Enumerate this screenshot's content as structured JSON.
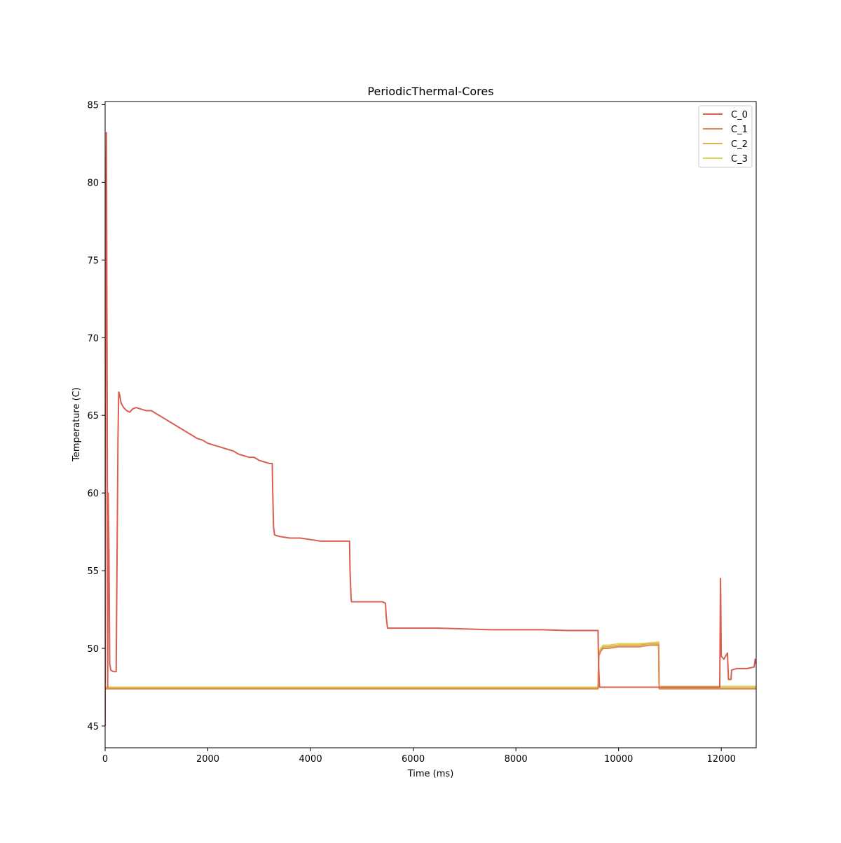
{
  "chart_data": {
    "type": "line",
    "title": "PeriodicThermal-Cores",
    "xlabel": "Time (ms)",
    "ylabel": "Temperature (C)",
    "xlim": [
      0,
      12680
    ],
    "ylim": [
      43.6,
      85.2
    ],
    "xticks": [
      0,
      2000,
      4000,
      6000,
      8000,
      10000,
      12000
    ],
    "yticks": [
      45,
      50,
      55,
      60,
      65,
      70,
      75,
      80,
      85
    ],
    "grid": false,
    "legend": "top-right",
    "series": [
      {
        "name": "C_0",
        "color": "#d95f52",
        "points": [
          [
            0,
            45.0
          ],
          [
            10,
            73.0
          ],
          [
            25,
            83.2
          ],
          [
            40,
            66.0
          ],
          [
            50,
            47.5
          ],
          [
            60,
            60.0
          ],
          [
            75,
            56.0
          ],
          [
            90,
            49.0
          ],
          [
            110,
            48.6
          ],
          [
            160,
            48.5
          ],
          [
            215,
            48.5
          ],
          [
            235,
            57.0
          ],
          [
            250,
            63.5
          ],
          [
            265,
            66.5
          ],
          [
            285,
            66.3
          ],
          [
            310,
            65.8
          ],
          [
            360,
            65.5
          ],
          [
            420,
            65.3
          ],
          [
            480,
            65.2
          ],
          [
            530,
            65.4
          ],
          [
            600,
            65.5
          ],
          [
            700,
            65.4
          ],
          [
            800,
            65.3
          ],
          [
            900,
            65.3
          ],
          [
            1000,
            65.1
          ],
          [
            1100,
            64.9
          ],
          [
            1200,
            64.7
          ],
          [
            1300,
            64.5
          ],
          [
            1400,
            64.3
          ],
          [
            1500,
            64.1
          ],
          [
            1600,
            63.9
          ],
          [
            1700,
            63.7
          ],
          [
            1800,
            63.5
          ],
          [
            1900,
            63.4
          ],
          [
            2000,
            63.2
          ],
          [
            2100,
            63.1
          ],
          [
            2200,
            63.0
          ],
          [
            2300,
            62.9
          ],
          [
            2400,
            62.8
          ],
          [
            2500,
            62.7
          ],
          [
            2600,
            62.5
          ],
          [
            2700,
            62.4
          ],
          [
            2800,
            62.3
          ],
          [
            2900,
            62.3
          ],
          [
            3000,
            62.1
          ],
          [
            3100,
            62.0
          ],
          [
            3200,
            61.9
          ],
          [
            3255,
            61.9
          ],
          [
            3265,
            60.0
          ],
          [
            3280,
            57.8
          ],
          [
            3300,
            57.3
          ],
          [
            3400,
            57.2
          ],
          [
            3600,
            57.1
          ],
          [
            3800,
            57.1
          ],
          [
            4000,
            57.0
          ],
          [
            4200,
            56.9
          ],
          [
            4400,
            56.9
          ],
          [
            4600,
            56.9
          ],
          [
            4760,
            56.9
          ],
          [
            4770,
            55.0
          ],
          [
            4790,
            53.2
          ],
          [
            4800,
            53.0
          ],
          [
            5000,
            53.0
          ],
          [
            5200,
            53.0
          ],
          [
            5400,
            53.0
          ],
          [
            5460,
            52.9
          ],
          [
            5475,
            52.0
          ],
          [
            5500,
            51.3
          ],
          [
            5600,
            51.3
          ],
          [
            6000,
            51.3
          ],
          [
            6500,
            51.3
          ],
          [
            7000,
            51.25
          ],
          [
            7500,
            51.2
          ],
          [
            8000,
            51.2
          ],
          [
            8500,
            51.2
          ],
          [
            9000,
            51.15
          ],
          [
            9400,
            51.15
          ],
          [
            9600,
            51.15
          ],
          [
            9610,
            49.0
          ],
          [
            9630,
            47.5
          ],
          [
            10000,
            47.5
          ],
          [
            10780,
            47.5
          ],
          [
            10800,
            47.5
          ],
          [
            11000,
            47.5
          ],
          [
            11500,
            47.5
          ],
          [
            11970,
            47.5
          ],
          [
            11985,
            54.5
          ],
          [
            12000,
            49.5
          ],
          [
            12050,
            49.3
          ],
          [
            12120,
            49.7
          ],
          [
            12140,
            48.0
          ],
          [
            12190,
            48.0
          ],
          [
            12200,
            48.6
          ],
          [
            12300,
            48.7
          ],
          [
            12500,
            48.7
          ],
          [
            12640,
            48.8
          ],
          [
            12660,
            49.3
          ],
          [
            12680,
            49.0
          ]
        ]
      },
      {
        "name": "C_1",
        "color": "#dc8a52",
        "points": [
          [
            0,
            47.4
          ],
          [
            9600,
            47.4
          ],
          [
            9615,
            49.5
          ],
          [
            9650,
            49.8
          ],
          [
            9700,
            50.0
          ],
          [
            9800,
            50.0
          ],
          [
            10000,
            50.1
          ],
          [
            10200,
            50.1
          ],
          [
            10400,
            50.1
          ],
          [
            10600,
            50.2
          ],
          [
            10780,
            50.2
          ],
          [
            10790,
            47.4
          ],
          [
            12680,
            47.4
          ]
        ]
      },
      {
        "name": "C_2",
        "color": "#e1b04e",
        "points": [
          [
            0,
            47.45
          ],
          [
            9600,
            47.45
          ],
          [
            9615,
            49.6
          ],
          [
            9650,
            49.9
          ],
          [
            9700,
            50.1
          ],
          [
            9800,
            50.1
          ],
          [
            10000,
            50.2
          ],
          [
            10200,
            50.2
          ],
          [
            10400,
            50.2
          ],
          [
            10600,
            50.3
          ],
          [
            10780,
            50.3
          ],
          [
            10790,
            47.45
          ],
          [
            12680,
            47.45
          ]
        ]
      },
      {
        "name": "C_3",
        "color": "#d8d454",
        "points": [
          [
            0,
            47.5
          ],
          [
            9600,
            47.5
          ],
          [
            9615,
            49.7
          ],
          [
            9650,
            50.0
          ],
          [
            9700,
            50.2
          ],
          [
            9800,
            50.2
          ],
          [
            10000,
            50.3
          ],
          [
            10200,
            50.3
          ],
          [
            10400,
            50.3
          ],
          [
            10600,
            50.35
          ],
          [
            10780,
            50.4
          ],
          [
            10790,
            47.55
          ],
          [
            12680,
            47.55
          ]
        ]
      }
    ]
  }
}
